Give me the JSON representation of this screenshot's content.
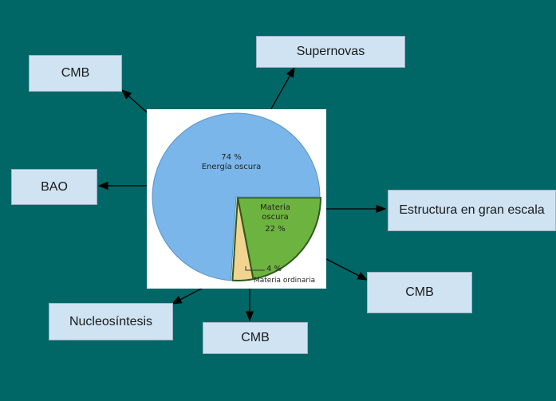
{
  "boxes": {
    "cmb_top_left": "CMB",
    "supernovas": "Supernovas",
    "bao": "BAO",
    "estructura": "Estructura en gran escala",
    "cmb_bottom_right": "CMB",
    "nucleosintesis": "Nucleosíntesis",
    "cmb_bottom": "CMB"
  },
  "pie": {
    "dark_energy_pct": "74 %",
    "dark_energy_label": "Energía oscura",
    "dark_matter_label_1": "Materia",
    "dark_matter_label_2": "oscura",
    "dark_matter_pct": "22 %",
    "ordinary_pct": "4 %",
    "ordinary_label": "Materia ordinaria"
  },
  "chart_data": {
    "type": "pie",
    "slices": [
      {
        "label": "Energía oscura",
        "value": 74,
        "color": "#7ab6ea"
      },
      {
        "label": "Materia oscura",
        "value": 22,
        "color": "#6db33f"
      },
      {
        "label": "Materia ordinaria",
        "value": 4,
        "color": "#f1d48f"
      }
    ]
  },
  "colors": {
    "background": "#006666",
    "box_fill": "#cfe3f2",
    "arrow": "#000000"
  }
}
